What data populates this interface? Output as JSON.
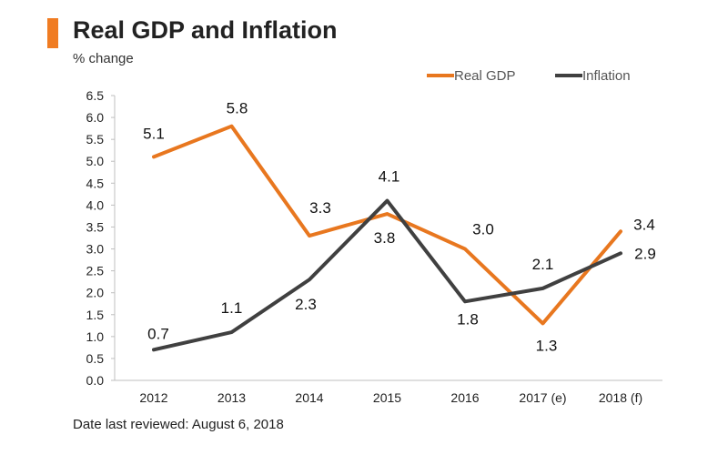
{
  "colors": {
    "accent": "#f07c22",
    "gdp": "#e8771f",
    "inflation": "#404040"
  },
  "chart_data": {
    "type": "line",
    "title": "Real GDP and Inflation",
    "ylabel": "% change",
    "xlabel": "",
    "categories": [
      "2012",
      "2013",
      "2014",
      "2015",
      "2016",
      "2017 (e)",
      "2018 (f)"
    ],
    "ylim": [
      0,
      6.5
    ],
    "yticks": [
      "0.0",
      "0.5",
      "1.0",
      "1.5",
      "2.0",
      "2.5",
      "3.0",
      "3.5",
      "4.0",
      "4.5",
      "5.0",
      "5.5",
      "6.0",
      "6.5"
    ],
    "legend_position": "top-right",
    "series": [
      {
        "name": "Real GDP",
        "values": [
          5.1,
          5.8,
          3.3,
          3.8,
          3.0,
          1.3,
          3.4
        ],
        "labels": [
          "5.1",
          "5.8",
          "3.3",
          "3.8",
          "3.0",
          "1.3",
          "3.4"
        ]
      },
      {
        "name": "Inflation",
        "values": [
          0.7,
          1.1,
          2.3,
          4.1,
          1.8,
          2.1,
          2.9
        ],
        "labels": [
          "0.7",
          "1.1",
          "2.3",
          "4.1",
          "1.8",
          "2.1",
          "2.9"
        ]
      }
    ]
  },
  "footer": "Date last reviewed: August 6, 2018"
}
